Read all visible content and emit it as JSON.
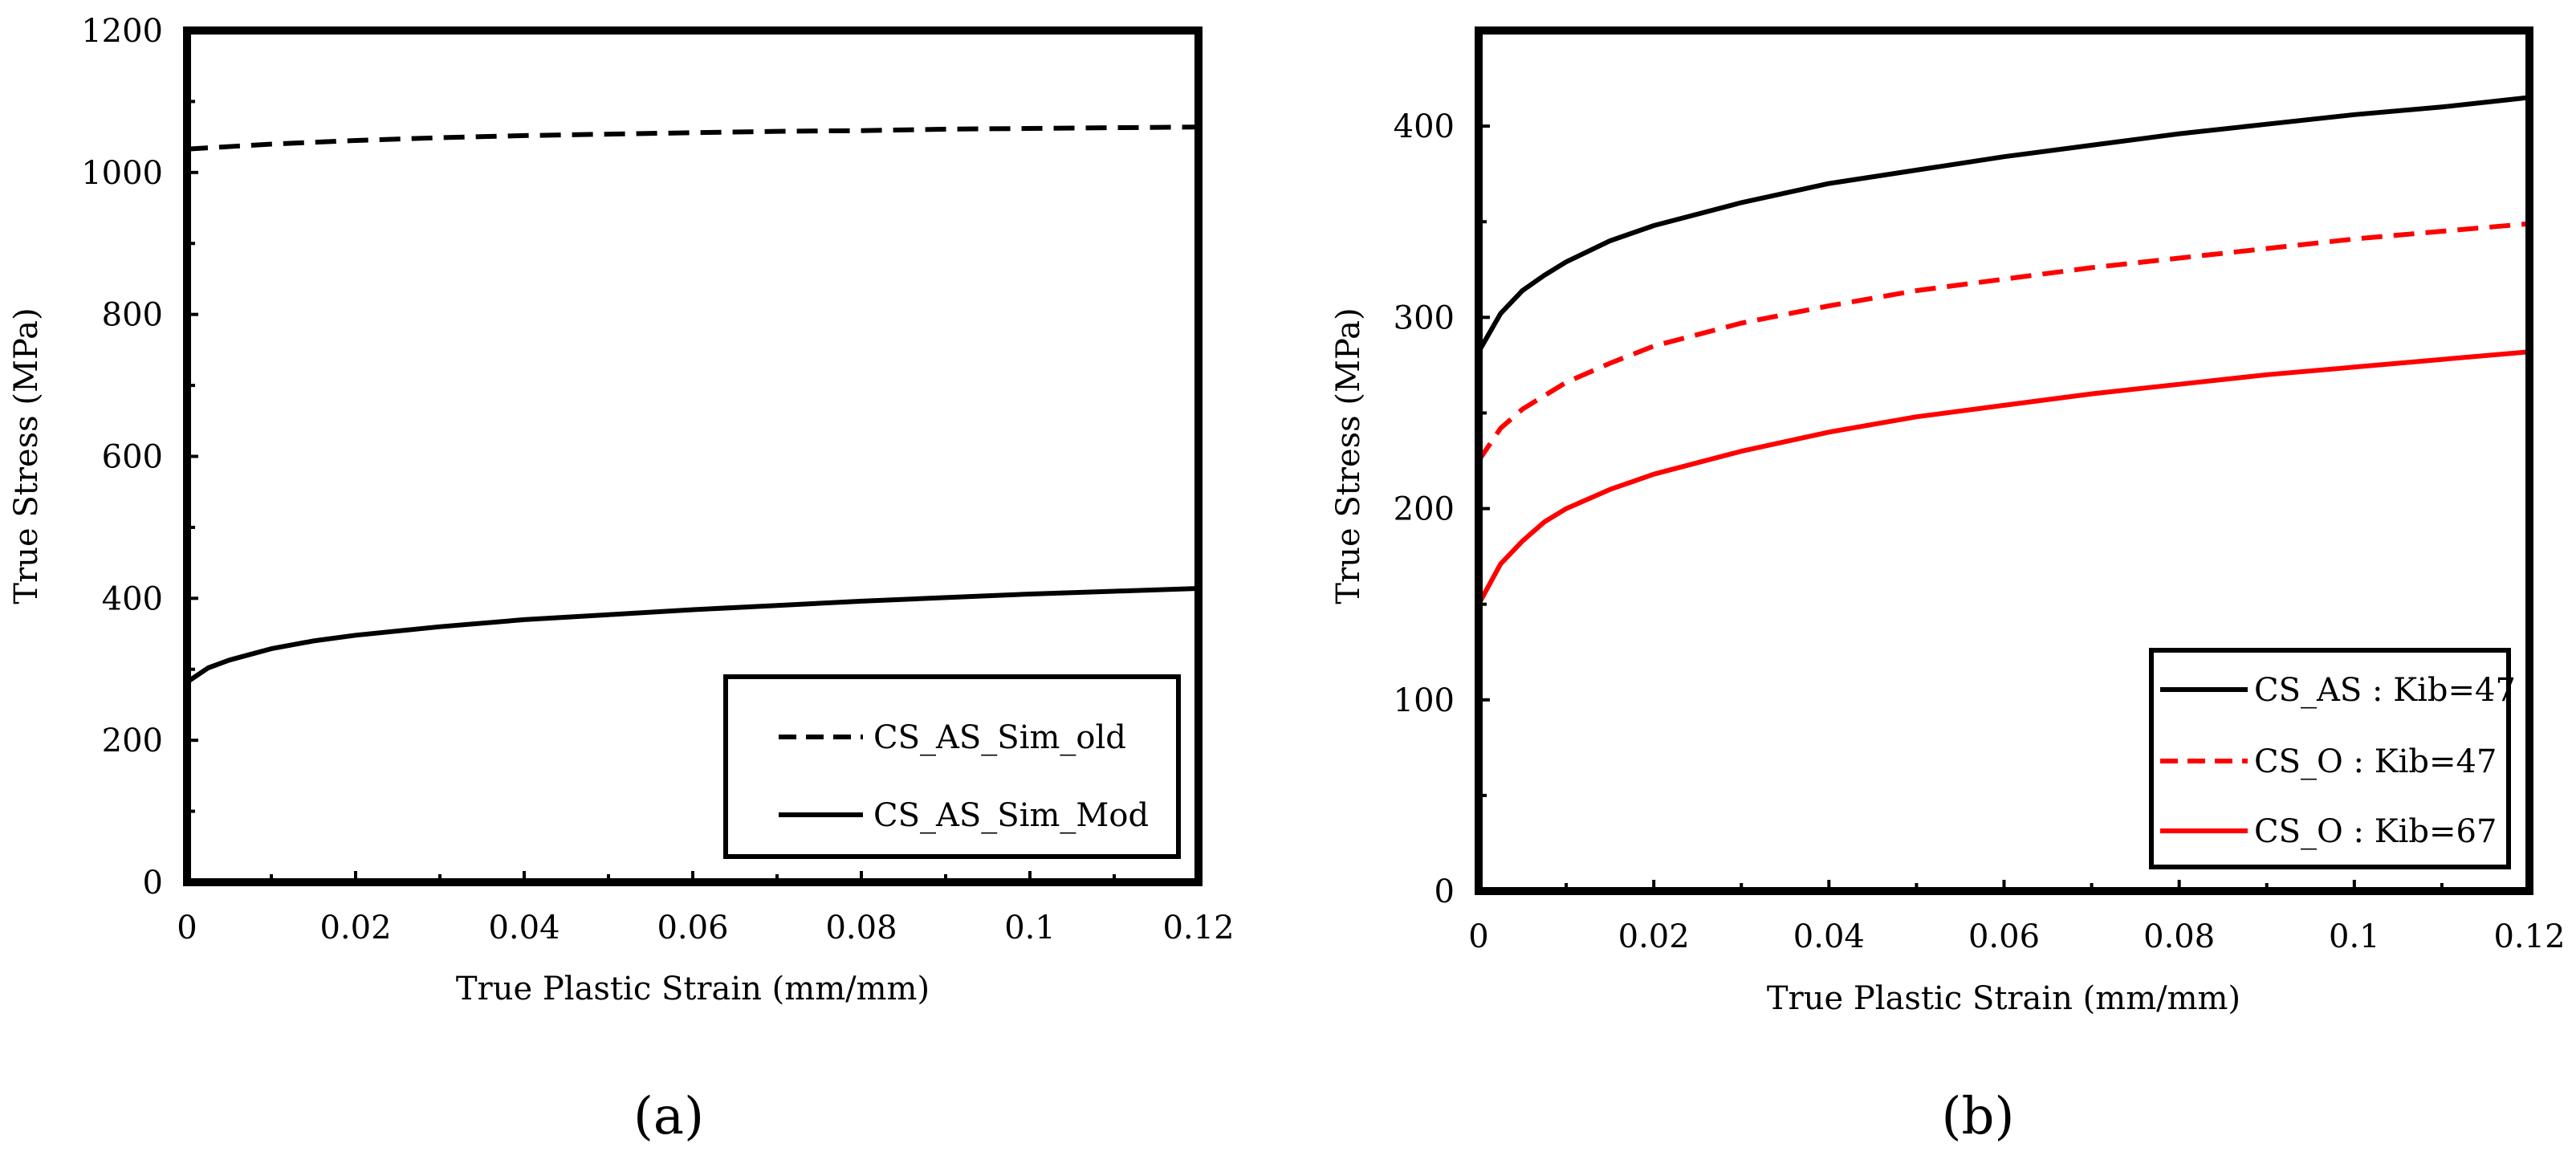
{
  "chart_data": [
    {
      "id": "a",
      "type": "line",
      "panel_label": "(a)",
      "title": "",
      "xlabel": "True Plastic Strain (mm/mm)",
      "ylabel": "True Stress (MPa)",
      "xlim": [
        0,
        0.12
      ],
      "ylim": [
        0,
        1200
      ],
      "xticks": [
        0,
        0.02,
        0.04,
        0.06,
        0.08,
        0.1,
        0.12
      ],
      "xtick_labels": [
        "0",
        "0.02",
        "0.04",
        "0.06",
        "0.08",
        "0.1",
        "0.12"
      ],
      "yticks": [
        0,
        200,
        400,
        600,
        800,
        1000,
        1200
      ],
      "ytick_labels": [
        "0",
        "200",
        "400",
        "600",
        "800",
        "1000",
        "1200"
      ],
      "grid": false,
      "legend_position": "bottom-right",
      "series": [
        {
          "name": "CS_AS_Sim_old",
          "color": "#000000",
          "dash": "dashed",
          "x": [
            0,
            0.01,
            0.02,
            0.03,
            0.04,
            0.05,
            0.06,
            0.07,
            0.08,
            0.09,
            0.1,
            0.11,
            0.12
          ],
          "y": [
            1033,
            1040,
            1045,
            1049,
            1052,
            1054,
            1056,
            1058,
            1059,
            1061,
            1062,
            1063,
            1064
          ]
        },
        {
          "name": "CS_AS_Sim_Mod",
          "color": "#000000",
          "dash": "solid",
          "x": [
            0,
            0.0025,
            0.005,
            0.0075,
            0.01,
            0.015,
            0.02,
            0.03,
            0.04,
            0.05,
            0.06,
            0.07,
            0.08,
            0.09,
            0.1,
            0.11,
            0.12
          ],
          "y": [
            282,
            302,
            313,
            321,
            329,
            340,
            348,
            360,
            370,
            377,
            384,
            390,
            396,
            401,
            406,
            410,
            414
          ]
        }
      ]
    },
    {
      "id": "b",
      "type": "line",
      "panel_label": "(b)",
      "title": "",
      "xlabel": "True Plastic Strain (mm/mm)",
      "ylabel": "True Stress (MPa)",
      "xlim": [
        0,
        0.12
      ],
      "ylim": [
        0,
        450
      ],
      "xticks": [
        0,
        0.02,
        0.04,
        0.06,
        0.08,
        0.1,
        0.12
      ],
      "xtick_labels": [
        "0",
        "0.02",
        "0.04",
        "0.06",
        "0.08",
        "0.1",
        "0.12"
      ],
      "yticks": [
        0,
        100,
        200,
        300,
        400
      ],
      "ytick_labels": [
        "0",
        "100",
        "200",
        "300",
        "400"
      ],
      "grid": false,
      "legend_position": "bottom-right",
      "series": [
        {
          "name": "CS_AS : Kib=47",
          "color": "#000000",
          "dash": "solid",
          "x": [
            0,
            0.0025,
            0.005,
            0.0075,
            0.01,
            0.015,
            0.02,
            0.03,
            0.04,
            0.05,
            0.06,
            0.07,
            0.08,
            0.09,
            0.1,
            0.11,
            0.12
          ],
          "y": [
            282,
            302,
            314,
            322,
            329,
            340,
            348,
            360,
            370,
            377,
            384,
            390,
            396,
            401,
            406,
            410,
            415
          ]
        },
        {
          "name": "CS_O : Kib=47",
          "color": "#ff0000",
          "dash": "dashed",
          "x": [
            0,
            0.0025,
            0.005,
            0.0075,
            0.01,
            0.015,
            0.02,
            0.03,
            0.04,
            0.05,
            0.06,
            0.07,
            0.08,
            0.09,
            0.1,
            0.11,
            0.12
          ],
          "y": [
            225,
            242,
            252,
            259,
            266,
            276,
            285,
            297,
            306,
            314,
            320,
            326,
            331,
            336,
            341,
            345,
            349
          ]
        },
        {
          "name": "CS_O : Kib=67",
          "color": "#ff0000",
          "dash": "solid",
          "x": [
            0,
            0.0025,
            0.005,
            0.0075,
            0.01,
            0.015,
            0.02,
            0.03,
            0.04,
            0.05,
            0.06,
            0.07,
            0.08,
            0.09,
            0.1,
            0.11,
            0.12
          ],
          "y": [
            150,
            171,
            183,
            193,
            200,
            210,
            218,
            230,
            240,
            248,
            254,
            260,
            265,
            270,
            274,
            278,
            282
          ]
        }
      ]
    }
  ]
}
